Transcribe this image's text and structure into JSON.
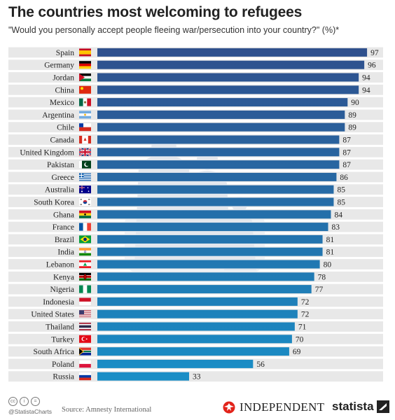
{
  "header": {
    "title": "The countries most welcoming to refugees",
    "subtitle": "\"Would you personally accept people fleeing war/persecution into your country?\" (%)*"
  },
  "footer": {
    "handle": "@StatistaCharts",
    "source": "Source: Amnesty International",
    "publisher": "INDEPENDENT",
    "brand": "statista",
    "license_icons": [
      "cc-icon",
      "attribution-icon",
      "noderivs-icon"
    ]
  },
  "colors": {
    "bar_top": "#2f4f8c",
    "bar_bottom": "#1a8fc7",
    "row_band": "#e8e8e8",
    "silhouette": "#e3e7ed"
  },
  "chart_data": {
    "type": "bar",
    "orientation": "horizontal",
    "grid": false,
    "xlim": [
      0,
      100
    ],
    "categories": [
      "Spain",
      "Germany",
      "Jordan",
      "China",
      "Mexico",
      "Argentina",
      "Chile",
      "Canada",
      "United Kingdom",
      "Pakistan",
      "Greece",
      "Australia",
      "South Korea",
      "Ghana",
      "France",
      "Brazil",
      "India",
      "Lebanon",
      "Kenya",
      "Nigeria",
      "Indonesia",
      "United States",
      "Thailand",
      "Turkey",
      "South Africa",
      "Poland",
      "Russia"
    ],
    "values": [
      97,
      96,
      94,
      94,
      90,
      89,
      89,
      87,
      87,
      87,
      86,
      85,
      85,
      84,
      83,
      81,
      81,
      80,
      78,
      77,
      72,
      72,
      71,
      70,
      69,
      56,
      33
    ],
    "flags": [
      "spain-flag-icon",
      "germany-flag-icon",
      "jordan-flag-icon",
      "china-flag-icon",
      "mexico-flag-icon",
      "argentina-flag-icon",
      "chile-flag-icon",
      "canada-flag-icon",
      "united-kingdom-flag-icon",
      "pakistan-flag-icon",
      "greece-flag-icon",
      "australia-flag-icon",
      "south-korea-flag-icon",
      "ghana-flag-icon",
      "france-flag-icon",
      "brazil-flag-icon",
      "india-flag-icon",
      "lebanon-flag-icon",
      "kenya-flag-icon",
      "nigeria-flag-icon",
      "indonesia-flag-icon",
      "united-states-flag-icon",
      "thailand-flag-icon",
      "turkey-flag-icon",
      "south-africa-flag-icon",
      "poland-flag-icon",
      "russia-flag-icon"
    ]
  }
}
